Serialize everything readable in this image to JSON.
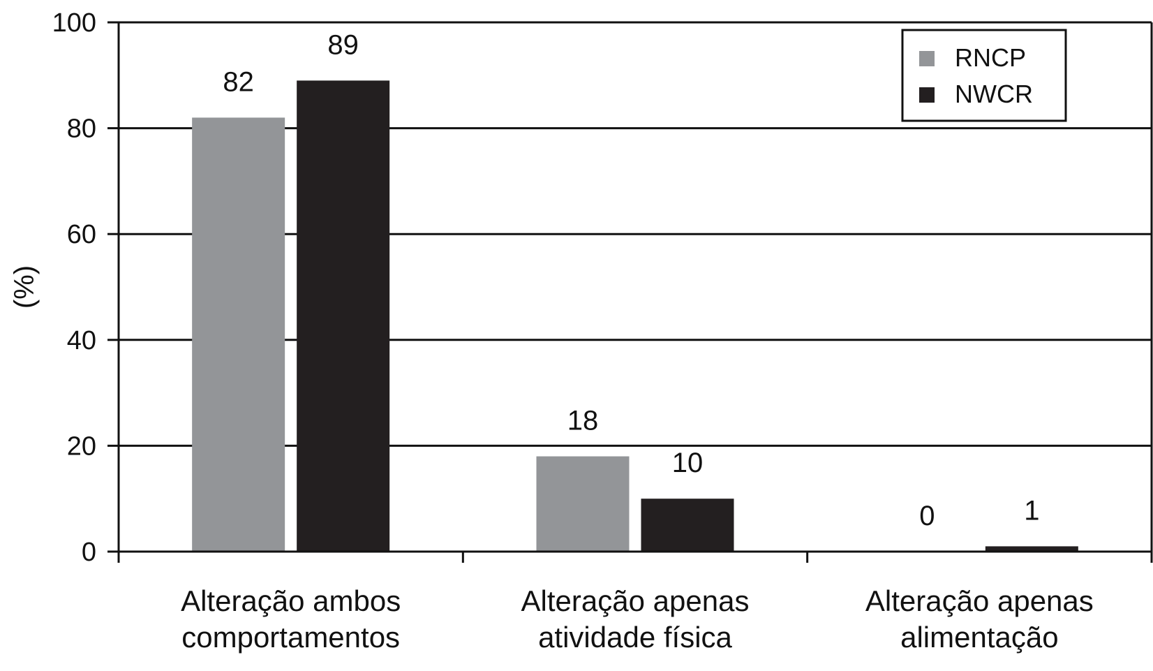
{
  "chart_data": {
    "type": "bar",
    "title": "",
    "xlabel": "",
    "ylabel": "(%)",
    "ylim": [
      0,
      100
    ],
    "yticks": [
      0,
      20,
      40,
      60,
      80,
      100
    ],
    "grid": true,
    "legend_position": "top-right",
    "categories": [
      [
        "Alteração ambos",
        "comportamentos"
      ],
      [
        "Alteração apenas",
        "atividade física"
      ],
      [
        "Alteração apenas",
        "alimentação"
      ]
    ],
    "series": [
      {
        "name": "RNCP",
        "color": "#939598",
        "values": [
          82,
          18,
          0
        ]
      },
      {
        "name": "NWCR",
        "color": "#231f20",
        "values": [
          89,
          10,
          1
        ]
      }
    ]
  }
}
